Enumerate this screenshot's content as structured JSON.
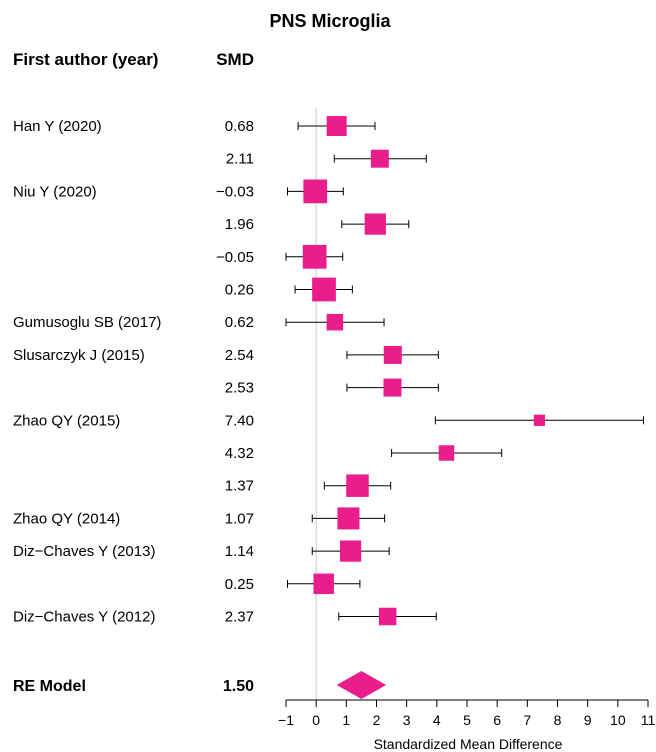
{
  "chart_data": {
    "type": "forest",
    "title": "PNS Microglia",
    "columns": {
      "author": "First author (year)",
      "smd": "SMD"
    },
    "xlabel": "Standardized Mean Difference",
    "xlim": [
      -1,
      11
    ],
    "xticks": [
      "−1",
      "0",
      "1",
      "2",
      "3",
      "4",
      "5",
      "6",
      "7",
      "8",
      "9",
      "10",
      "11"
    ],
    "reference_line": 0,
    "marker_color": "#e91e8c",
    "studies": [
      {
        "author": "Han Y (2020)",
        "smd_label": "0.68",
        "smd": 0.68,
        "ci": [
          -0.6,
          1.95
        ],
        "weight": 0.8
      },
      {
        "author": "",
        "smd_label": "2.11",
        "smd": 2.11,
        "ci": [
          0.6,
          3.65
        ],
        "weight": 0.72
      },
      {
        "author": "Niu Y (2020)",
        "smd_label": "−0.03",
        "smd": -0.03,
        "ci": [
          -0.95,
          0.9
        ],
        "weight": 0.95
      },
      {
        "author": "",
        "smd_label": "1.96",
        "smd": 1.96,
        "ci": [
          0.85,
          3.07
        ],
        "weight": 0.85
      },
      {
        "author": "",
        "smd_label": "−0.05",
        "smd": -0.05,
        "ci": [
          -1.0,
          0.88
        ],
        "weight": 0.95
      },
      {
        "author": "",
        "smd_label": "0.26",
        "smd": 0.26,
        "ci": [
          -0.7,
          1.2
        ],
        "weight": 0.95
      },
      {
        "author": "Gumusoglu SB (2017)",
        "smd_label": "0.62",
        "smd": 0.62,
        "ci": [
          -1.0,
          2.25
        ],
        "weight": 0.66
      },
      {
        "author": "Slusarczyk J (2015)",
        "smd_label": "2.54",
        "smd": 2.54,
        "ci": [
          1.02,
          4.05
        ],
        "weight": 0.72
      },
      {
        "author": "",
        "smd_label": "2.53",
        "smd": 2.53,
        "ci": [
          1.02,
          4.05
        ],
        "weight": 0.72
      },
      {
        "author": "Zhao QY (2015)",
        "smd_label": "7.40",
        "smd": 7.4,
        "ci": [
          3.95,
          10.85
        ],
        "weight": 0.45
      },
      {
        "author": "",
        "smd_label": "4.32",
        "smd": 4.32,
        "ci": [
          2.5,
          6.15
        ],
        "weight": 0.62
      },
      {
        "author": "",
        "smd_label": "1.37",
        "smd": 1.37,
        "ci": [
          0.27,
          2.47
        ],
        "weight": 0.9
      },
      {
        "author": "Zhao QY (2014)",
        "smd_label": "1.07",
        "smd": 1.07,
        "ci": [
          -0.13,
          2.27
        ],
        "weight": 0.88
      },
      {
        "author": "Diz−Chaves Y (2013)",
        "smd_label": "1.14",
        "smd": 1.14,
        "ci": [
          -0.13,
          2.42
        ],
        "weight": 0.85
      },
      {
        "author": "",
        "smd_label": "0.25",
        "smd": 0.25,
        "ci": [
          -0.95,
          1.45
        ],
        "weight": 0.82
      },
      {
        "author": "Diz−Chaves Y (2012)",
        "smd_label": "2.37",
        "smd": 2.37,
        "ci": [
          0.75,
          3.98
        ],
        "weight": 0.7
      }
    ],
    "summary": {
      "label": "RE Model",
      "smd_label": "1.50",
      "smd": 1.5,
      "ci": [
        0.68,
        2.32
      ]
    }
  }
}
